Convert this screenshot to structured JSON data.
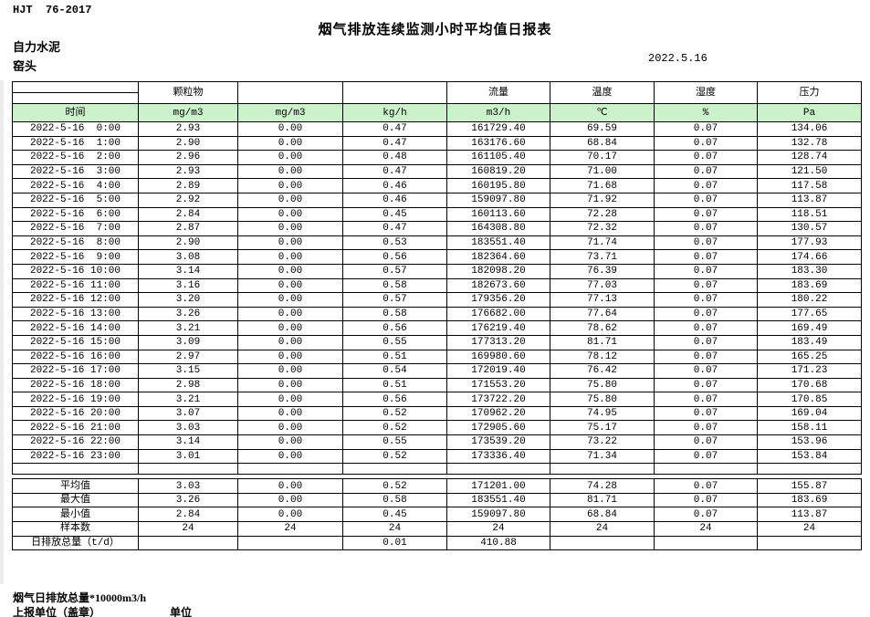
{
  "page": {
    "doc_code": "HJT  76-2017",
    "title": "烟气排放连续监测小时平均值日报表",
    "company": "自力水泥",
    "location": "窑头",
    "date": "2022.5.16"
  },
  "colors": {
    "unit_row_green": "#ccf2cc",
    "border": "#000000",
    "background": "#ffffff"
  },
  "table": {
    "group_headers": [
      "颗粒物",
      "流量",
      "温度",
      "湿度",
      "压力"
    ],
    "unit_row": [
      "时间",
      "mg/m3",
      "mg/m3",
      "kg/h",
      "m3/h",
      "℃",
      "%",
      "Pa"
    ],
    "rows": [
      {
        "time": "2022-5-16  0:00",
        "values": [
          "2.93",
          "0.00",
          "0.47",
          "161729.40",
          "69.59",
          "0.07",
          "134.06"
        ]
      },
      {
        "time": "2022-5-16  1:00",
        "values": [
          "2.90",
          "0.00",
          "0.47",
          "163176.60",
          "68.84",
          "0.07",
          "132.78"
        ]
      },
      {
        "time": "2022-5-16  2:00",
        "values": [
          "2.96",
          "0.00",
          "0.48",
          "161105.40",
          "70.17",
          "0.07",
          "128.74"
        ]
      },
      {
        "time": "2022-5-16  3:00",
        "values": [
          "2.93",
          "0.00",
          "0.47",
          "160819.20",
          "71.00",
          "0.07",
          "121.50"
        ]
      },
      {
        "time": "2022-5-16  4:00",
        "values": [
          "2.89",
          "0.00",
          "0.46",
          "160195.80",
          "71.68",
          "0.07",
          "117.58"
        ]
      },
      {
        "time": "2022-5-16  5:00",
        "values": [
          "2.92",
          "0.00",
          "0.46",
          "159097.80",
          "71.92",
          "0.07",
          "113.87"
        ]
      },
      {
        "time": "2022-5-16  6:00",
        "values": [
          "2.84",
          "0.00",
          "0.45",
          "160113.60",
          "72.28",
          "0.07",
          "118.51"
        ]
      },
      {
        "time": "2022-5-16  7:00",
        "values": [
          "2.87",
          "0.00",
          "0.47",
          "164308.80",
          "72.32",
          "0.07",
          "130.57"
        ]
      },
      {
        "time": "2022-5-16  8:00",
        "values": [
          "2.90",
          "0.00",
          "0.53",
          "183551.40",
          "71.74",
          "0.07",
          "177.93"
        ]
      },
      {
        "time": "2022-5-16  9:00",
        "values": [
          "3.08",
          "0.00",
          "0.56",
          "182364.60",
          "73.71",
          "0.07",
          "174.66"
        ]
      },
      {
        "time": "2022-5-16 10:00",
        "values": [
          "3.14",
          "0.00",
          "0.57",
          "182098.20",
          "76.39",
          "0.07",
          "183.30"
        ]
      },
      {
        "time": "2022-5-16 11:00",
        "values": [
          "3.16",
          "0.00",
          "0.58",
          "182673.60",
          "77.03",
          "0.07",
          "183.69"
        ]
      },
      {
        "time": "2022-5-16 12:00",
        "values": [
          "3.20",
          "0.00",
          "0.57",
          "179356.20",
          "77.13",
          "0.07",
          "180.22"
        ]
      },
      {
        "time": "2022-5-16 13:00",
        "values": [
          "3.26",
          "0.00",
          "0.58",
          "176682.00",
          "77.64",
          "0.07",
          "177.65"
        ]
      },
      {
        "time": "2022-5-16 14:00",
        "values": [
          "3.21",
          "0.00",
          "0.56",
          "176219.40",
          "78.62",
          "0.07",
          "169.49"
        ]
      },
      {
        "time": "2022-5-16 15:00",
        "values": [
          "3.09",
          "0.00",
          "0.55",
          "177313.20",
          "81.71",
          "0.07",
          "183.49"
        ]
      },
      {
        "time": "2022-5-16 16:00",
        "values": [
          "2.97",
          "0.00",
          "0.51",
          "169980.60",
          "78.12",
          "0.07",
          "165.25"
        ]
      },
      {
        "time": "2022-5-16 17:00",
        "values": [
          "3.15",
          "0.00",
          "0.54",
          "172019.40",
          "76.42",
          "0.07",
          "171.23"
        ]
      },
      {
        "time": "2022-5-16 18:00",
        "values": [
          "2.98",
          "0.00",
          "0.51",
          "171553.20",
          "75.80",
          "0.07",
          "170.68"
        ]
      },
      {
        "time": "2022-5-16 19:00",
        "values": [
          "3.21",
          "0.00",
          "0.56",
          "173722.20",
          "75.80",
          "0.07",
          "170.85"
        ]
      },
      {
        "time": "2022-5-16 20:00",
        "values": [
          "3.07",
          "0.00",
          "0.52",
          "170962.20",
          "74.95",
          "0.07",
          "169.04"
        ]
      },
      {
        "time": "2022-5-16 21:00",
        "values": [
          "3.03",
          "0.00",
          "0.52",
          "172905.60",
          "75.17",
          "0.07",
          "158.11"
        ]
      },
      {
        "time": "2022-5-16 22:00",
        "values": [
          "3.14",
          "0.00",
          "0.55",
          "173539.20",
          "73.22",
          "0.07",
          "153.96"
        ]
      },
      {
        "time": "2022-5-16 23:00",
        "values": [
          "3.01",
          "0.00",
          "0.52",
          "173336.40",
          "71.34",
          "0.07",
          "153.84"
        ]
      }
    ],
    "summary": [
      {
        "label": "平均值",
        "values": [
          "3.03",
          "0.00",
          "0.52",
          "171201.00",
          "74.28",
          "0.07",
          "155.87"
        ]
      },
      {
        "label": "最大值",
        "values": [
          "3.26",
          "0.00",
          "0.58",
          "183551.40",
          "81.71",
          "0.07",
          "183.69"
        ]
      },
      {
        "label": "最小值",
        "values": [
          "2.84",
          "0.00",
          "0.45",
          "159097.80",
          "68.84",
          "0.07",
          "113.87"
        ]
      },
      {
        "label": "样本数",
        "values": [
          "24",
          "24",
          "24",
          "24",
          "24",
          "24",
          "24"
        ]
      },
      {
        "label": "日排放总量（t/d）",
        "values": [
          "",
          "",
          "0.01",
          "410.88",
          "",
          "",
          ""
        ]
      }
    ]
  },
  "footer": {
    "note": "烟气日排放总量*10000m3/h",
    "report_unit": "上报单位（盖章）",
    "unit_label": "单位"
  }
}
